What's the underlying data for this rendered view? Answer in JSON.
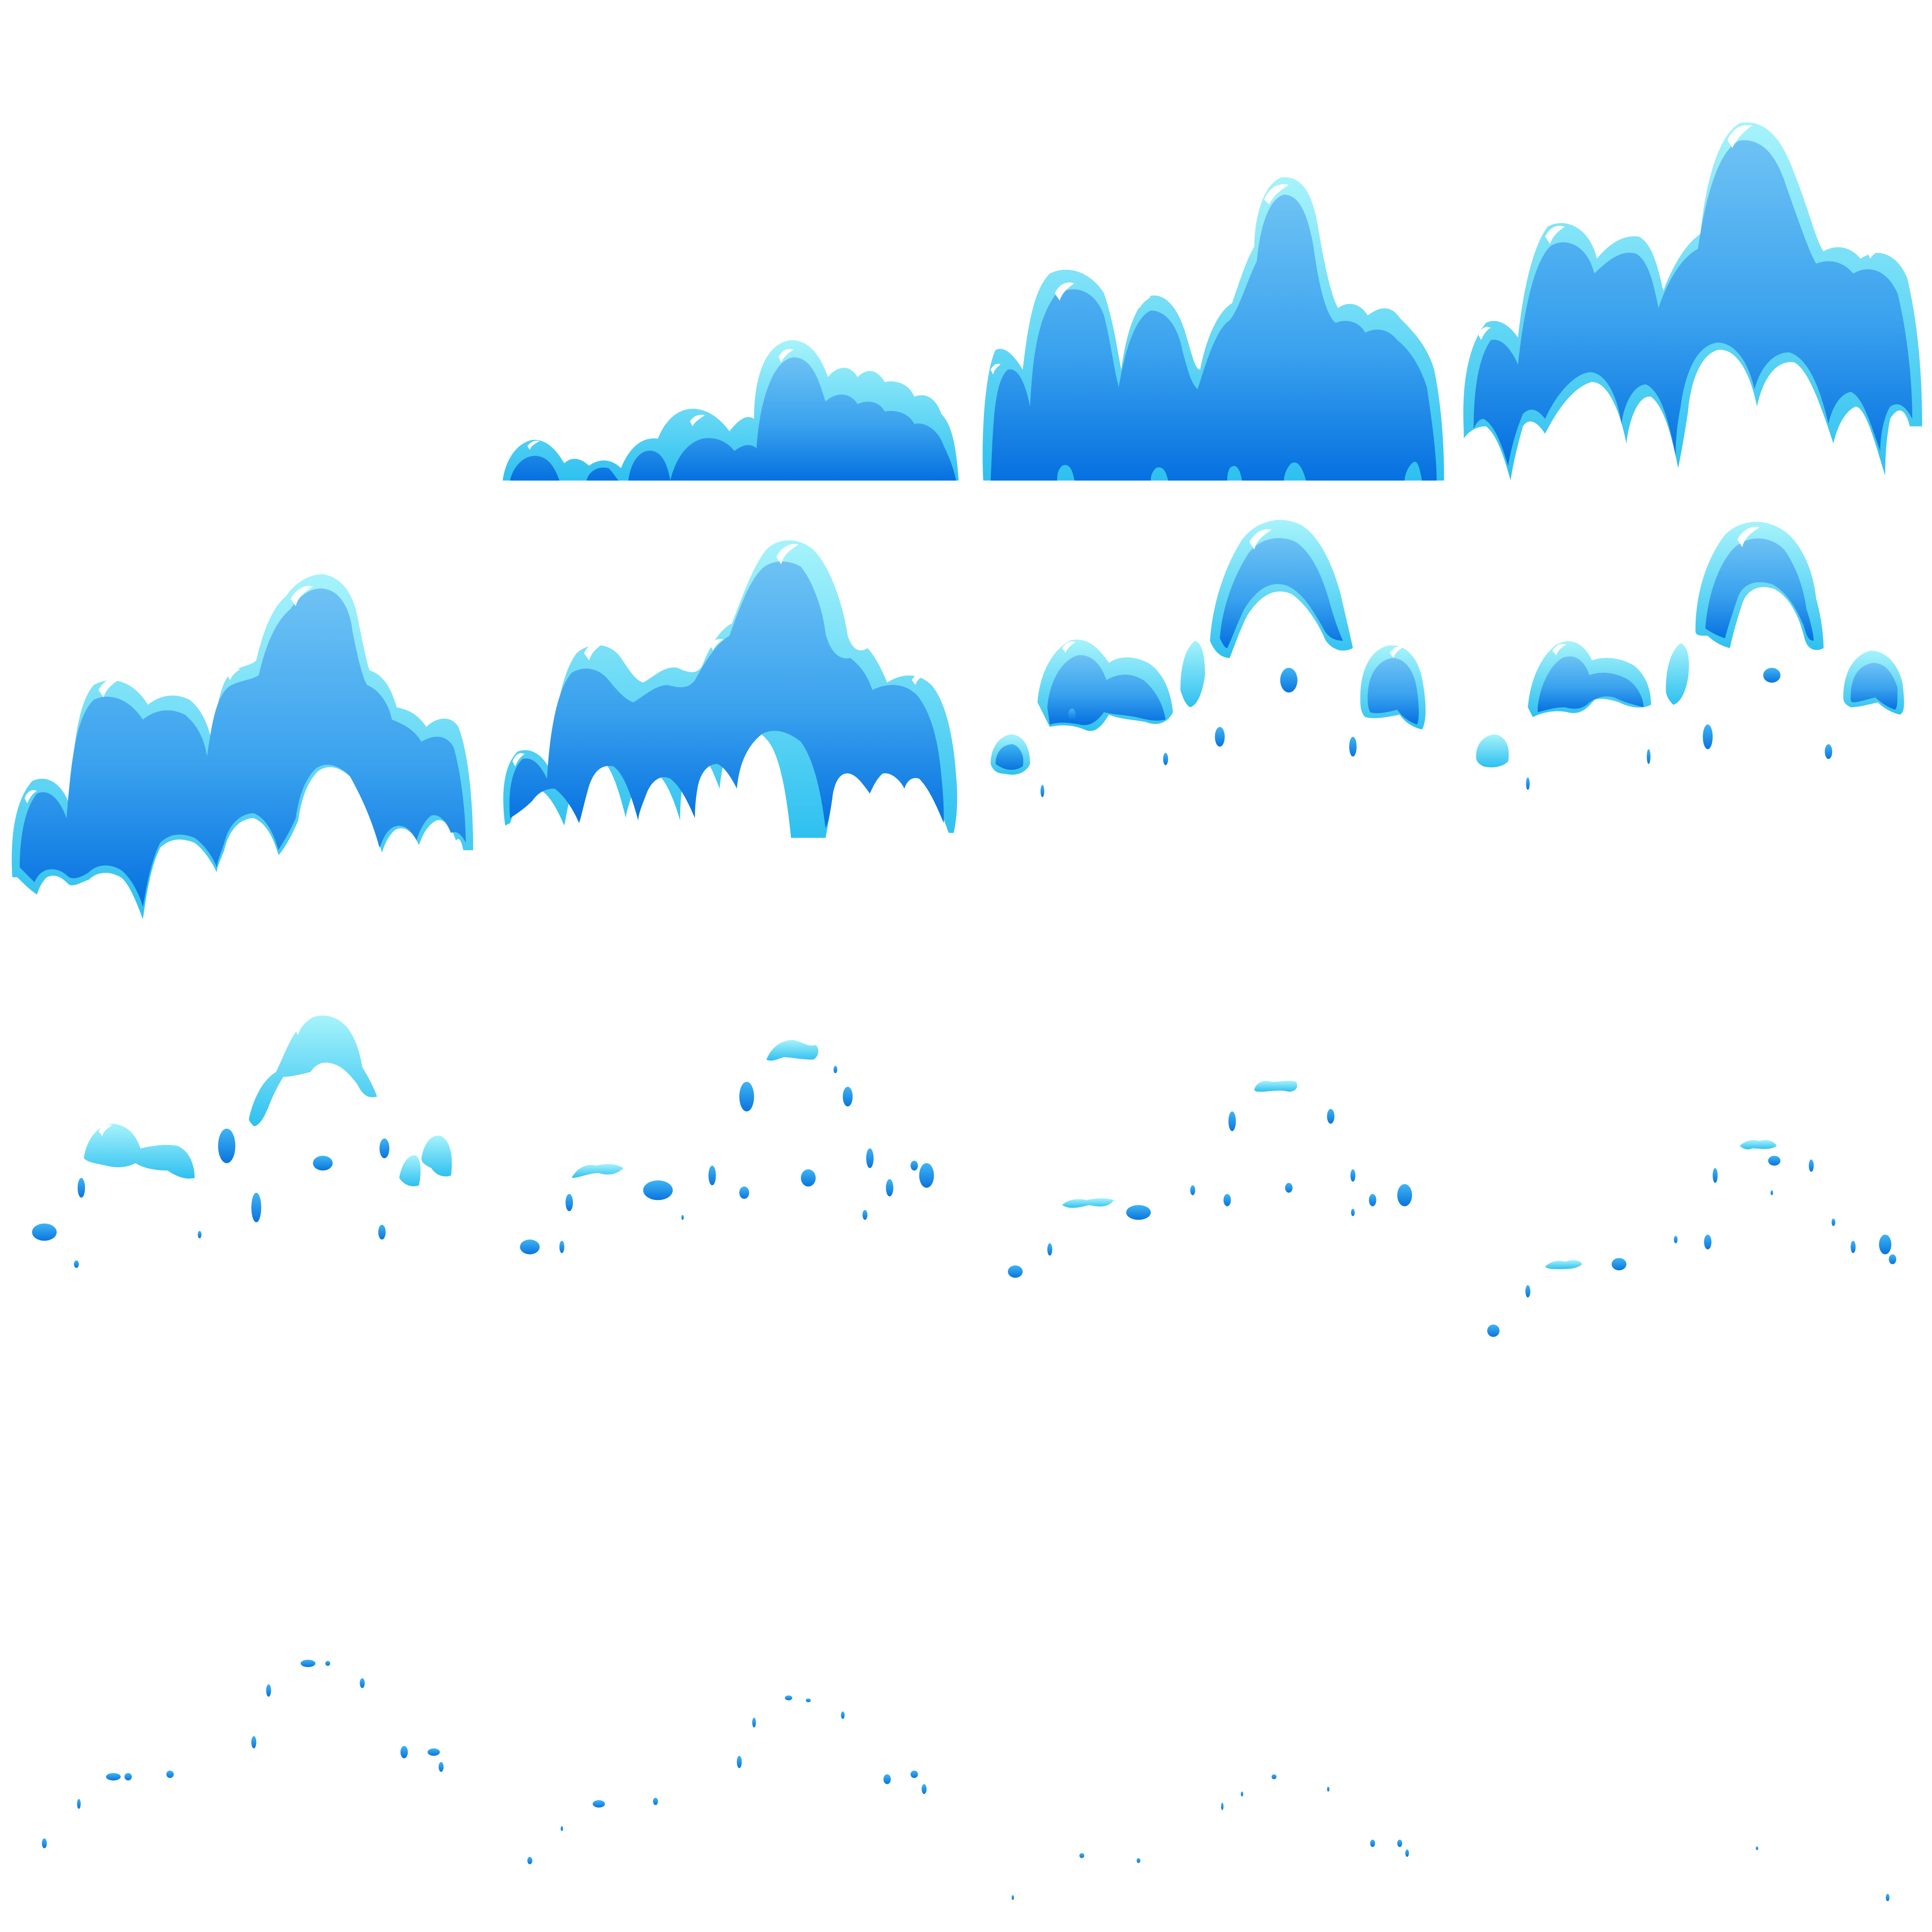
{
  "sheet": {
    "grid": {
      "columns": 4,
      "rows": 4
    },
    "colors": {
      "rim": "#8ef0fb",
      "rim_mid": "#3cc6f2",
      "body_light": "#6ec2f4",
      "body_mid": "#3aa2ee",
      "body_dark": "#0570e0",
      "highlight": "#ffffff"
    },
    "frames": [
      {
        "index": 0,
        "kind": "empty"
      },
      {
        "index": 1,
        "kind": "splash",
        "stage": "rise-low"
      },
      {
        "index": 2,
        "kind": "splash",
        "stage": "rise-mid"
      },
      {
        "index": 3,
        "kind": "splash",
        "stage": "peak"
      },
      {
        "index": 4,
        "kind": "splash",
        "stage": "peak-hollow"
      },
      {
        "index": 5,
        "kind": "splash",
        "stage": "collapse-start"
      },
      {
        "index": 6,
        "kind": "splash",
        "stage": "break-apart"
      },
      {
        "index": 7,
        "kind": "splash",
        "stage": "break-apart-2"
      },
      {
        "index": 8,
        "kind": "droplets",
        "stage": "scatter-1"
      },
      {
        "index": 9,
        "kind": "droplets",
        "stage": "scatter-2"
      },
      {
        "index": 10,
        "kind": "droplets",
        "stage": "scatter-3"
      },
      {
        "index": 11,
        "kind": "droplets",
        "stage": "scatter-4"
      },
      {
        "index": 12,
        "kind": "droplets",
        "stage": "fade-1"
      },
      {
        "index": 13,
        "kind": "droplets",
        "stage": "fade-2"
      },
      {
        "index": 14,
        "kind": "droplets",
        "stage": "fade-3"
      },
      {
        "index": 15,
        "kind": "droplets",
        "stage": "fade-4"
      }
    ]
  }
}
